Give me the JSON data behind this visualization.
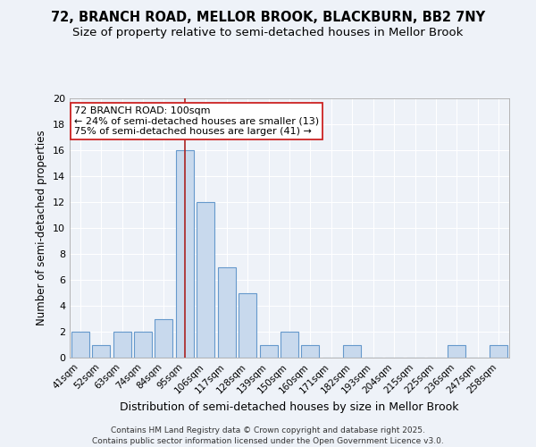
{
  "title1": "72, BRANCH ROAD, MELLOR BROOK, BLACKBURN, BB2 7NY",
  "title2": "Size of property relative to semi-detached houses in Mellor Brook",
  "xlabel": "Distribution of semi-detached houses by size in Mellor Brook",
  "ylabel": "Number of semi-detached properties",
  "categories": [
    "41sqm",
    "52sqm",
    "63sqm",
    "74sqm",
    "84sqm",
    "95sqm",
    "106sqm",
    "117sqm",
    "128sqm",
    "139sqm",
    "150sqm",
    "160sqm",
    "171sqm",
    "182sqm",
    "193sqm",
    "204sqm",
    "215sqm",
    "225sqm",
    "236sqm",
    "247sqm",
    "258sqm"
  ],
  "values": [
    2,
    1,
    2,
    2,
    3,
    16,
    12,
    7,
    5,
    1,
    2,
    1,
    0,
    1,
    0,
    0,
    0,
    0,
    1,
    0,
    1
  ],
  "bar_color": "#c8d9ed",
  "bar_edge_color": "#6699cc",
  "highlight_index": 5,
  "highlight_line_color": "#aa2222",
  "ylim": [
    0,
    20
  ],
  "yticks": [
    0,
    2,
    4,
    6,
    8,
    10,
    12,
    14,
    16,
    18,
    20
  ],
  "annotation_title": "72 BRANCH ROAD: 100sqm",
  "annotation_line1": "← 24% of semi-detached houses are smaller (13)",
  "annotation_line2": "75% of semi-detached houses are larger (41) →",
  "annotation_box_color": "#ffffff",
  "annotation_box_edge_color": "#cc2222",
  "footnote1": "Contains HM Land Registry data © Crown copyright and database right 2025.",
  "footnote2": "Contains public sector information licensed under the Open Government Licence v3.0.",
  "bg_color": "#eef2f8",
  "grid_color": "#ffffff",
  "title1_fontsize": 10.5,
  "title2_fontsize": 9.5,
  "annotation_fontsize": 8.0
}
